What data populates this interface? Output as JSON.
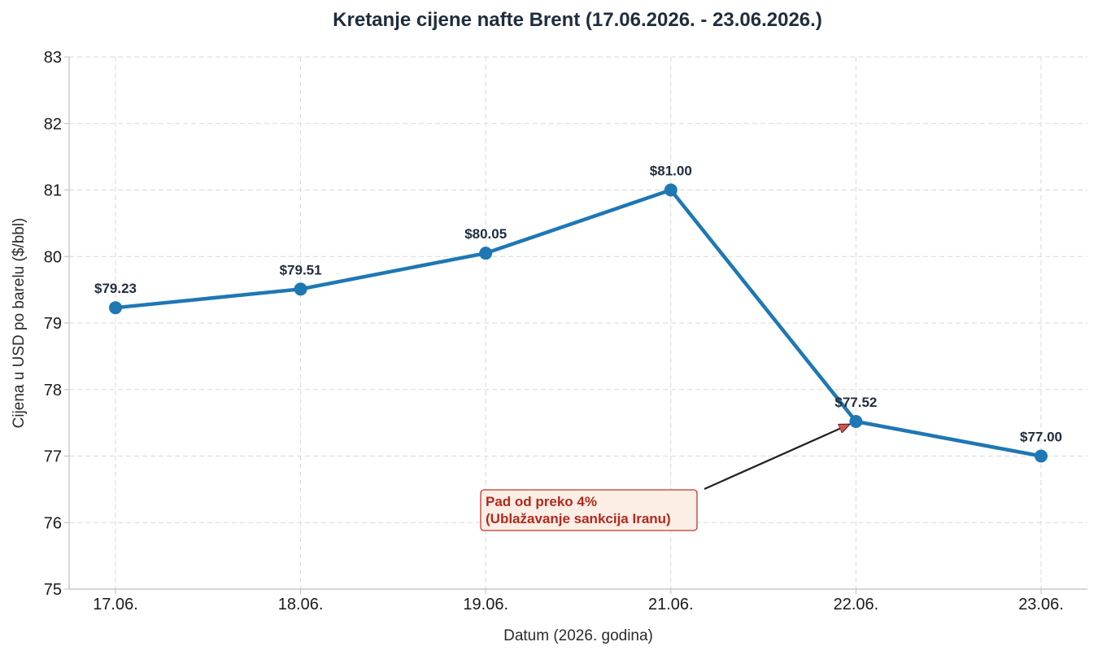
{
  "chart_data": {
    "type": "line",
    "title": "Kretanje cijene nafte Brent (17.06.2026. - 23.06.2026.)",
    "xlabel": "Datum (2026. godina)",
    "ylabel": "Cijena u USD po barelu ($/bbl)",
    "categories": [
      "17.06.",
      "18.06.",
      "19.06.",
      "21.06.",
      "22.06.",
      "23.06."
    ],
    "series": [
      {
        "values": [
          79.23,
          79.51,
          80.05,
          81.0,
          77.52,
          77.0
        ],
        "data_labels": [
          "$79.23",
          "$79.51",
          "$80.05",
          "$81.00",
          "$77.52",
          "$77.00"
        ],
        "color": "#1f77b4"
      }
    ],
    "ylim": [
      75,
      83
    ],
    "yticks": [
      75,
      76,
      77,
      78,
      79,
      80,
      81,
      82,
      83
    ],
    "grid": true,
    "annotation": {
      "line1": "Pad od preko 4%",
      "line2": "(Ublažavanje sankcija Iranu)",
      "target_category": "22.06.",
      "text_color": "#b0291f",
      "box_fill": "#fdeee5",
      "box_border": "#c0392b",
      "arrow_color": "#d9534f"
    }
  }
}
